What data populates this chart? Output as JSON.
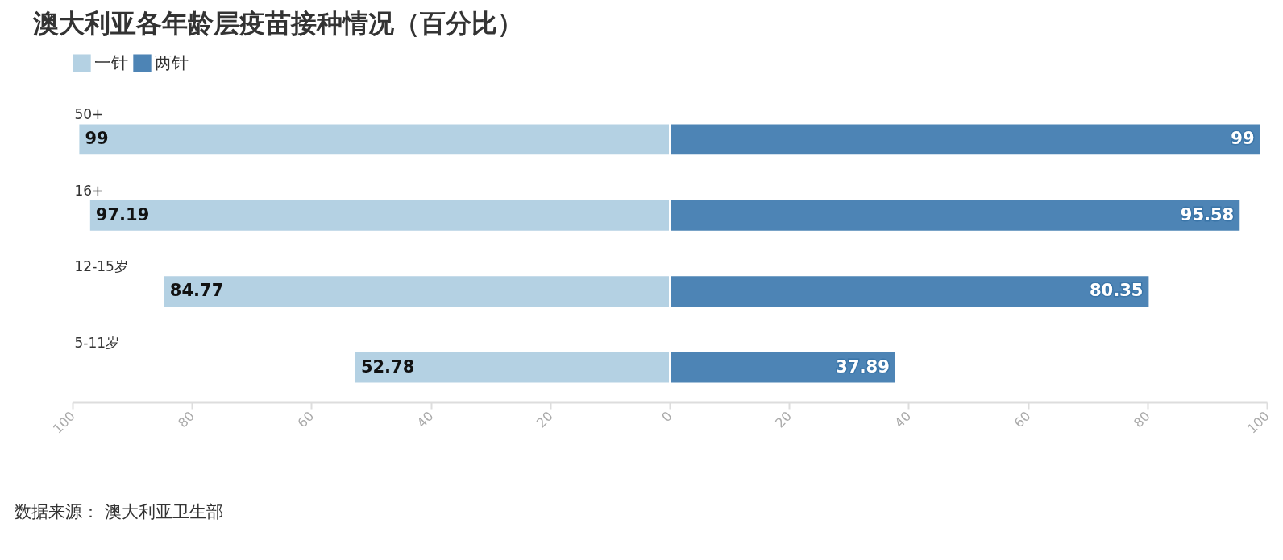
{
  "chart_data": {
    "type": "bar",
    "orientation": "horizontal",
    "title": "澳大利亚各年龄层疫苗接种情况（百分比）",
    "categories": [
      "50+",
      "16+",
      "12-15岁",
      "5-11岁"
    ],
    "series": [
      {
        "name": "一针",
        "color": "#b4d1e3",
        "base": [
          -99,
          -97.19,
          -84.77,
          -52.78
        ],
        "values": [
          99,
          97.19,
          84.77,
          52.78
        ],
        "value_labels": [
          "99",
          "97.19",
          "84.77",
          "52.78"
        ]
      },
      {
        "name": "两针",
        "color": "#4d84b5",
        "values": [
          99,
          95.58,
          80.35,
          37.89
        ],
        "value_labels": [
          "99",
          "95.58",
          "80.35",
          "37.89"
        ]
      }
    ],
    "xlim": [
      -100,
      100
    ],
    "xticks": [
      {
        "value": -100,
        "label": "100"
      },
      {
        "value": -80,
        "label": "80"
      },
      {
        "value": -60,
        "label": "60"
      },
      {
        "value": -40,
        "label": "40"
      },
      {
        "value": -20,
        "label": "20"
      },
      0,
      20,
      40,
      60,
      80,
      100
    ],
    "legend": "top left",
    "grid": false,
    "annotations": [
      "数据来源：  澳大利亚卫生部"
    ]
  }
}
